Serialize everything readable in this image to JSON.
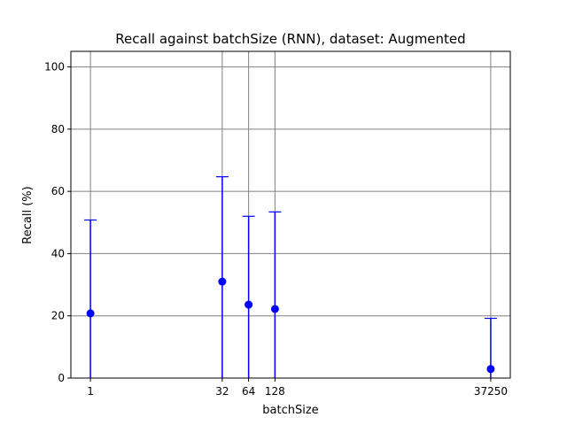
{
  "chart_data": {
    "type": "scatter",
    "title": "Recall against batchSize (RNN), dataset: Augmented",
    "xlabel": "batchSize",
    "ylabel": "Recall (%)",
    "x_scale": "log2",
    "x_ticks": [
      1,
      32,
      64,
      128,
      37250
    ],
    "x_tick_labels": [
      "1",
      "32",
      "64",
      "128",
      "37250"
    ],
    "ylim": [
      0,
      105
    ],
    "y_ticks": [
      0,
      20,
      40,
      60,
      80,
      100
    ],
    "y_tick_labels": [
      "0",
      "20",
      "40",
      "60",
      "80",
      "100"
    ],
    "grid": true,
    "series": [
      {
        "x": [
          1,
          32,
          64,
          128,
          37250
        ],
        "y": [
          20.8,
          31.0,
          23.6,
          22.2,
          2.9
        ],
        "yerr_lower": [
          20.8,
          31.0,
          23.6,
          22.2,
          2.9
        ],
        "yerr_upper": [
          30.0,
          33.7,
          28.4,
          31.2,
          16.3
        ],
        "color": "#0000ff"
      }
    ],
    "grid_color": "#808080"
  }
}
